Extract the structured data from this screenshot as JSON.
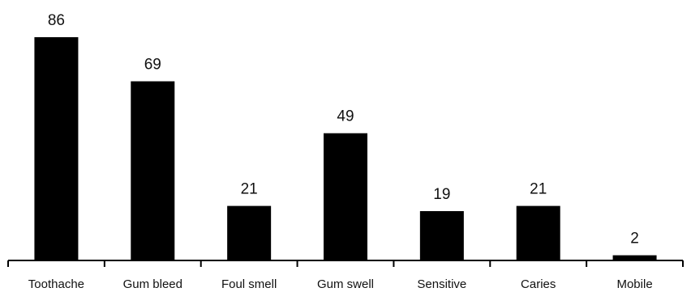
{
  "chart_data": {
    "type": "bar",
    "categories": [
      "Toothache",
      "Gum bleed",
      "Foul smell",
      "Gum swell",
      "Sensitive",
      "Caries",
      "Mobile"
    ],
    "values": [
      86,
      69,
      21,
      49,
      19,
      21,
      2
    ],
    "title": "",
    "xlabel": "",
    "ylabel": "",
    "ylim": [
      0,
      100
    ],
    "data_labels": true,
    "grid": false,
    "legend": "none",
    "bar_color": "#000000"
  }
}
